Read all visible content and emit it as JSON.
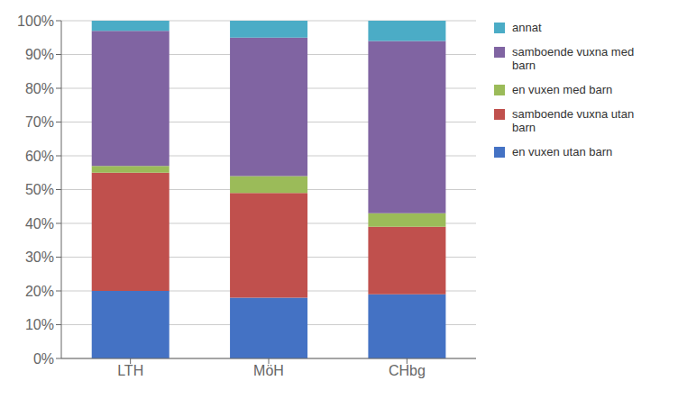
{
  "chart_data": {
    "type": "bar",
    "stacked": true,
    "grid": true,
    "legend": "right",
    "categories": [
      "LTH",
      "MöH",
      "CHbg"
    ],
    "series": [
      {
        "name": "en vuxen utan barn",
        "color": "#4472C4",
        "values": [
          20,
          18,
          19
        ]
      },
      {
        "name": "samboende vuxna utan\nbarn",
        "color": "#C0504D",
        "values": [
          35,
          31,
          20
        ]
      },
      {
        "name": "en vuxen med barn",
        "color": "#9BBB59",
        "values": [
          2,
          5,
          4
        ]
      },
      {
        "name": "samboende vuxna med\nbarn",
        "color": "#8064A2",
        "values": [
          40,
          41,
          51
        ]
      },
      {
        "name": "annat",
        "color": "#4BACC6",
        "values": [
          3,
          5,
          6
        ]
      }
    ],
    "ylim": [
      0,
      100
    ],
    "yticks": [
      {
        "value": 0,
        "label": "0%"
      },
      {
        "value": 10,
        "label": "10%"
      },
      {
        "value": 20,
        "label": "20%"
      },
      {
        "value": 30,
        "label": "30%"
      },
      {
        "value": 40,
        "label": "40%"
      },
      {
        "value": 50,
        "label": "50%"
      },
      {
        "value": 60,
        "label": "60%"
      },
      {
        "value": 70,
        "label": "70%"
      },
      {
        "value": 80,
        "label": "80%"
      },
      {
        "value": 90,
        "label": "90%"
      },
      {
        "value": 100,
        "label": "100%"
      }
    ]
  }
}
